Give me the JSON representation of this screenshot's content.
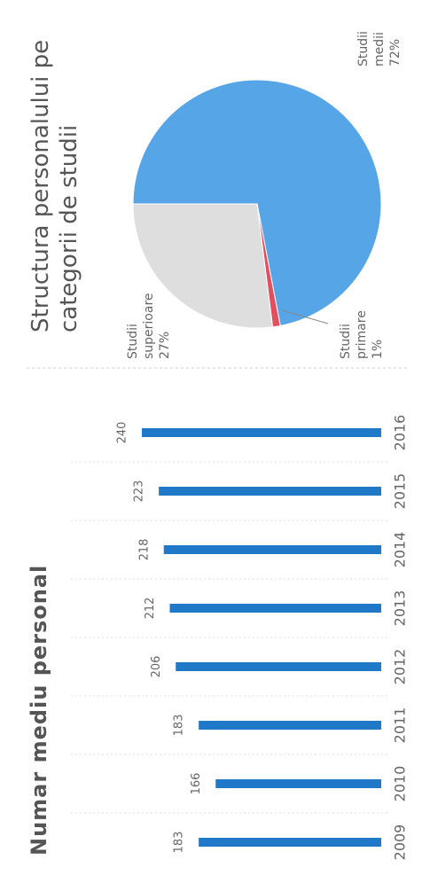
{
  "chart_data": [
    {
      "type": "bar",
      "title": "Numar mediu personal",
      "categories": [
        "2009",
        "2010",
        "2011",
        "2012",
        "2013",
        "2014",
        "2015",
        "2016"
      ],
      "values": [
        183,
        166,
        183,
        206,
        212,
        218,
        223,
        240
      ],
      "color": "#1f78c8"
    },
    {
      "type": "pie",
      "title": "Structura personalului pe categorii de studii",
      "categories": [
        "Studii medii",
        "Studii primare",
        "Studii superioare"
      ],
      "values": [
        72,
        1,
        27
      ],
      "value_labels": [
        "72%",
        "1%",
        "27%"
      ],
      "colors": [
        "#56a5e6",
        "#e0505e",
        "#dedede"
      ]
    }
  ]
}
